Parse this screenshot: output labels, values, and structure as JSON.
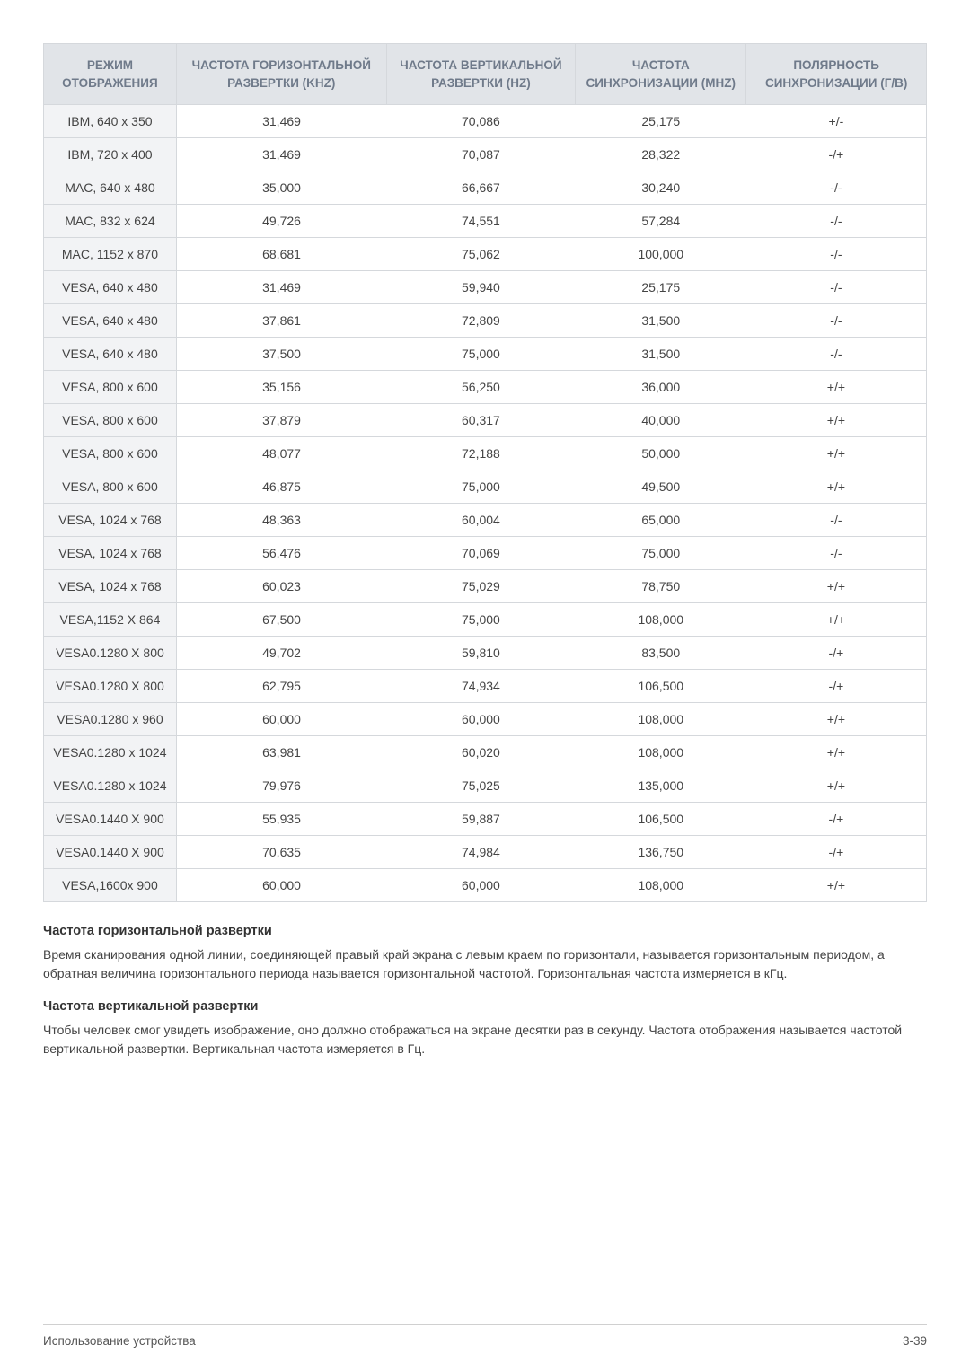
{
  "table": {
    "columns": [
      "РЕЖИМ ОТОБРАЖЕНИЯ",
      "ЧАСТОТА ГОРИЗОНТАЛЬНОЙ РАЗВЕРТКИ (KHZ)",
      "ЧАСТОТА ВЕРТИКАЛЬНОЙ РАЗВЕРТКИ (HZ)",
      "ЧАСТОТА СИНХРОНИЗАЦИИ (MHZ)",
      "ПОЛЯРНОСТЬ СИНХРОНИЗАЦИИ (Г/В)"
    ],
    "column_widths": [
      "20%",
      "20%",
      "20%",
      "20%",
      "20%"
    ],
    "header_bg": "#e1e4e8",
    "header_color": "#6f7a8a",
    "row_label_bg": "#f2f3f5",
    "border_color": "#d5d8dc",
    "rows": [
      [
        "IBM, 640 x 350",
        "31,469",
        "70,086",
        "25,175",
        "+/-"
      ],
      [
        "IBM, 720 x 400",
        "31,469",
        "70,087",
        "28,322",
        "-/+"
      ],
      [
        "MAC, 640 x 480",
        "35,000",
        "66,667",
        "30,240",
        "-/-"
      ],
      [
        "MAC, 832 x 624",
        "49,726",
        "74,551",
        "57,284",
        "-/-"
      ],
      [
        "MAC, 1152 x 870",
        "68,681",
        "75,062",
        "100,000",
        "-/-"
      ],
      [
        "VESA, 640 x 480",
        "31,469",
        "59,940",
        "25,175",
        "-/-"
      ],
      [
        "VESA, 640 x 480",
        "37,861",
        "72,809",
        "31,500",
        "-/-"
      ],
      [
        "VESA, 640 x 480",
        "37,500",
        "75,000",
        "31,500",
        "-/-"
      ],
      [
        "VESA, 800 x 600",
        "35,156",
        "56,250",
        "36,000",
        "+/+"
      ],
      [
        "VESA, 800 x 600",
        "37,879",
        "60,317",
        "40,000",
        "+/+"
      ],
      [
        "VESA, 800 x 600",
        "48,077",
        "72,188",
        "50,000",
        "+/+"
      ],
      [
        "VESA, 800 x 600",
        "46,875",
        "75,000",
        "49,500",
        "+/+"
      ],
      [
        "VESA, 1024 x 768",
        "48,363",
        "60,004",
        "65,000",
        "-/-"
      ],
      [
        "VESA, 1024 x 768",
        "56,476",
        "70,069",
        "75,000",
        "-/-"
      ],
      [
        "VESA, 1024 x 768",
        "60,023",
        "75,029",
        "78,750",
        "+/+"
      ],
      [
        "VESA,1152 X 864",
        "67,500",
        "75,000",
        "108,000",
        "+/+"
      ],
      [
        "VESA0.1280 X 800",
        "49,702",
        "59,810",
        "83,500",
        "-/+"
      ],
      [
        "VESA0.1280 X 800",
        "62,795",
        "74,934",
        "106,500",
        "-/+"
      ],
      [
        "VESA0.1280 x 960",
        "60,000",
        "60,000",
        "108,000",
        "+/+"
      ],
      [
        "VESA0.1280 x 1024",
        "63,981",
        "60,020",
        "108,000",
        "+/+"
      ],
      [
        "VESA0.1280 x 1024",
        "79,976",
        "75,025",
        "135,000",
        "+/+"
      ],
      [
        "VESA0.1440 X 900",
        "55,935",
        "59,887",
        "106,500",
        "-/+"
      ],
      [
        "VESA0.1440 X 900",
        "70,635",
        "74,984",
        "136,750",
        "-/+"
      ],
      [
        "VESA,1600x 900",
        "60,000",
        "60,000",
        "108,000",
        "+/+"
      ]
    ]
  },
  "section1": {
    "heading": "Частота горизонтальной развертки",
    "body": "Время сканирования одной линии, соединяющей правый край экрана с левым краем по горизонтали, называется горизонтальным периодом, а обратная величина горизонтального периода называется горизонтальной частотой. Горизонтальная частота измеряется в кГц."
  },
  "section2": {
    "heading": "Частота вертикальной развертки",
    "body": "Чтобы человек смог увидеть изображение, оно должно отображаться на экране десятки раз в секунду. Частота отображения называется частотой вертикальной развертки. Вертикальная частота измеряется в Гц."
  },
  "footer": {
    "left": "Использование устройства",
    "right": "3-39"
  }
}
